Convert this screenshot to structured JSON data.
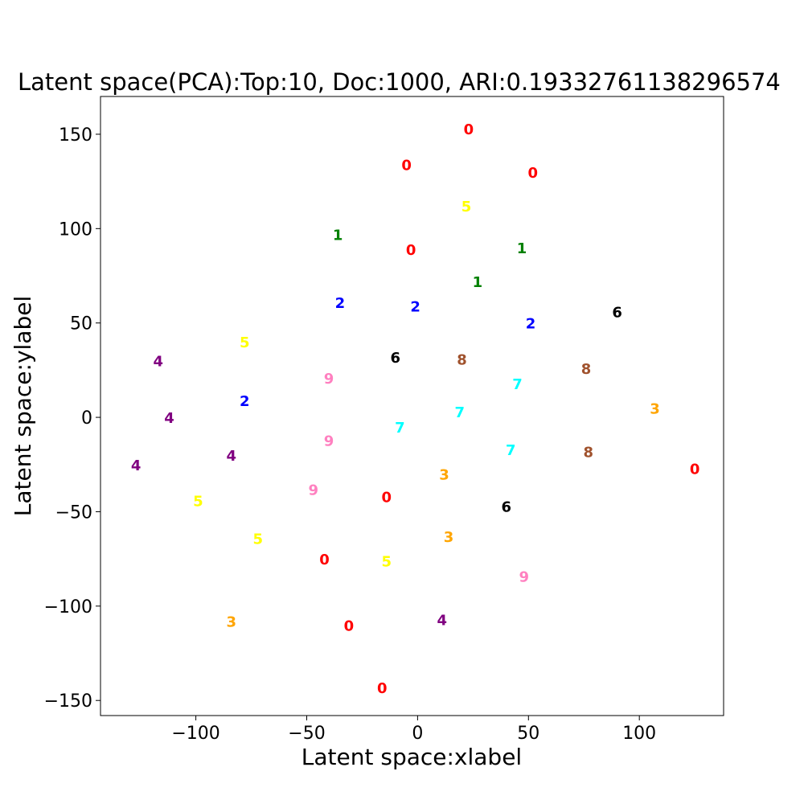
{
  "chart_data": {
    "type": "scatter",
    "title": "Latent space(PCA):Top:10, Doc:1000, ARI:0.19332761138296574",
    "xlabel": "Latent space:xlabel",
    "ylabel": "Latent space:ylabel",
    "xlim": [
      -143,
      138
    ],
    "ylim": [
      -158,
      170
    ],
    "xticks": [
      -100,
      -50,
      0,
      50,
      100
    ],
    "yticks": [
      -150,
      -100,
      -50,
      0,
      50,
      100,
      150
    ],
    "xtick_labels": [
      "−100",
      "−50",
      "0",
      "50",
      "100"
    ],
    "ytick_labels": [
      "−150",
      "−100",
      "−50",
      "0",
      "50",
      "100",
      "150"
    ],
    "grid": false,
    "label_colors": {
      "0": "#ff0000",
      "1": "#008000",
      "2": "#0000ff",
      "3": "#ffa500",
      "4": "#800080",
      "5": "#ffff00",
      "6": "#000000",
      "7": "#00ffff",
      "8": "#a0522d",
      "9": "#ff80c0"
    },
    "points": [
      {
        "label": "0",
        "x": 23,
        "y": 153
      },
      {
        "label": "0",
        "x": -5,
        "y": 134
      },
      {
        "label": "0",
        "x": 52,
        "y": 130
      },
      {
        "label": "5",
        "x": 22,
        "y": 112
      },
      {
        "label": "1",
        "x": -36,
        "y": 97
      },
      {
        "label": "0",
        "x": -3,
        "y": 89
      },
      {
        "label": "1",
        "x": 47,
        "y": 90
      },
      {
        "label": "1",
        "x": 27,
        "y": 72
      },
      {
        "label": "2",
        "x": -35,
        "y": 61
      },
      {
        "label": "2",
        "x": -1,
        "y": 59
      },
      {
        "label": "6",
        "x": 90,
        "y": 56
      },
      {
        "label": "2",
        "x": 51,
        "y": 50
      },
      {
        "label": "5",
        "x": -78,
        "y": 40
      },
      {
        "label": "4",
        "x": -117,
        "y": 30
      },
      {
        "label": "6",
        "x": -10,
        "y": 32
      },
      {
        "label": "8",
        "x": 20,
        "y": 31
      },
      {
        "label": "9",
        "x": -40,
        "y": 21
      },
      {
        "label": "8",
        "x": 76,
        "y": 26
      },
      {
        "label": "7",
        "x": 45,
        "y": 18
      },
      {
        "label": "3",
        "x": 107,
        "y": 5
      },
      {
        "label": "2",
        "x": -78,
        "y": 9
      },
      {
        "label": "4",
        "x": -112,
        "y": 0
      },
      {
        "label": "7",
        "x": 19,
        "y": 3
      },
      {
        "label": "7",
        "x": -8,
        "y": -5
      },
      {
        "label": "9",
        "x": -40,
        "y": -12
      },
      {
        "label": "7",
        "x": 42,
        "y": -17
      },
      {
        "label": "8",
        "x": 77,
        "y": -18
      },
      {
        "label": "0",
        "x": 125,
        "y": -27
      },
      {
        "label": "4",
        "x": -127,
        "y": -25
      },
      {
        "label": "4",
        "x": -84,
        "y": -20
      },
      {
        "label": "3",
        "x": 12,
        "y": -30
      },
      {
        "label": "9",
        "x": -47,
        "y": -38
      },
      {
        "label": "0",
        "x": -14,
        "y": -42
      },
      {
        "label": "5",
        "x": -99,
        "y": -44
      },
      {
        "label": "6",
        "x": 40,
        "y": -47
      },
      {
        "label": "5",
        "x": -72,
        "y": -64
      },
      {
        "label": "3",
        "x": 14,
        "y": -63
      },
      {
        "label": "0",
        "x": -42,
        "y": -75
      },
      {
        "label": "5",
        "x": -14,
        "y": -76
      },
      {
        "label": "9",
        "x": 48,
        "y": -84
      },
      {
        "label": "3",
        "x": -84,
        "y": -108
      },
      {
        "label": "4",
        "x": 11,
        "y": -107
      },
      {
        "label": "0",
        "x": -31,
        "y": -110
      },
      {
        "label": "0",
        "x": -16,
        "y": -143
      }
    ]
  }
}
